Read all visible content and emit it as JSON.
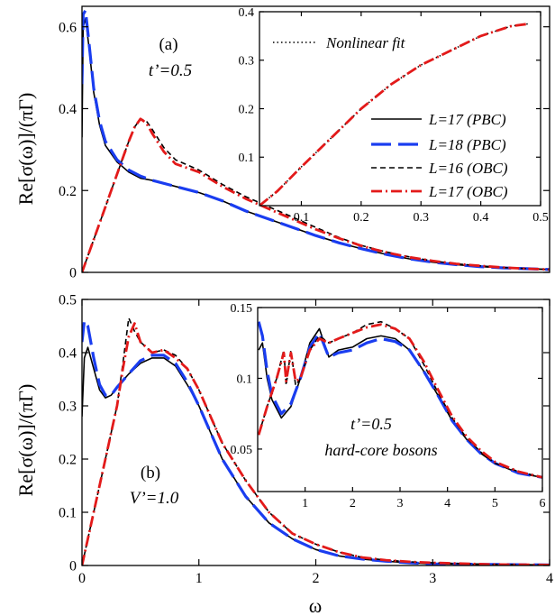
{
  "figure": {
    "x_axis_label": "ω",
    "legend": {
      "entries": [
        {
          "label": "L=17 (PBC)",
          "color": "#000000",
          "dash": "solid",
          "width": 1.6
        },
        {
          "label": "L=18 (PBC)",
          "color": "#1a3df0",
          "dash": "long-dash",
          "width": 3.2
        },
        {
          "label": "L=16 (OBC)",
          "color": "#000000",
          "dash": "dash",
          "width": 1.6
        },
        {
          "label": "L=17 (OBC)",
          "color": "#e31a1a",
          "dash": "dash-dot",
          "width": 2.8
        }
      ]
    },
    "inset_legend": {
      "label": "Nonlinear fit",
      "dash": "dotted"
    }
  },
  "chart_data": [
    {
      "id": "panel-a",
      "type": "line",
      "ylabel": "Re[σ(ω)]/(πΓ)",
      "xlabel": "",
      "xlim": [
        0,
        4
      ],
      "ylim": [
        0,
        0.65
      ],
      "xticks": [],
      "yticks": [
        0,
        0.2,
        0.4,
        0.6
      ],
      "ytick_labels": [
        "0",
        "0.2",
        "0.4",
        "0.6"
      ],
      "annotations": [
        "(a)",
        "t’=0.5"
      ],
      "series": [
        {
          "name": "L=17 (PBC)",
          "x": [
            0,
            0.01,
            0.03,
            0.06,
            0.1,
            0.15,
            0.2,
            0.3,
            0.4,
            0.5,
            0.6,
            0.8,
            1.0,
            1.2,
            1.4,
            1.6,
            1.8,
            2.0,
            2.2,
            2.4,
            2.6,
            2.8,
            3.0,
            3.2,
            3.4,
            3.6,
            3.8,
            4.0
          ],
          "y": [
            0.33,
            0.6,
            0.62,
            0.55,
            0.44,
            0.36,
            0.31,
            0.27,
            0.245,
            0.23,
            0.225,
            0.21,
            0.195,
            0.175,
            0.15,
            0.13,
            0.11,
            0.09,
            0.072,
            0.057,
            0.044,
            0.033,
            0.025,
            0.019,
            0.014,
            0.011,
            0.009,
            0.007
          ]
        },
        {
          "name": "L=18 (PBC)",
          "x": [
            0,
            0.01,
            0.03,
            0.06,
            0.1,
            0.15,
            0.2,
            0.3,
            0.4,
            0.5,
            0.6,
            0.8,
            1.0,
            1.2,
            1.4,
            1.6,
            1.8,
            2.0,
            2.2,
            2.4,
            2.6,
            2.8,
            3.0,
            3.2,
            3.4,
            3.6,
            3.8,
            4.0
          ],
          "y": [
            0.46,
            0.63,
            0.64,
            0.56,
            0.45,
            0.37,
            0.32,
            0.275,
            0.25,
            0.235,
            0.225,
            0.21,
            0.195,
            0.175,
            0.15,
            0.13,
            0.11,
            0.09,
            0.072,
            0.057,
            0.044,
            0.033,
            0.025,
            0.019,
            0.014,
            0.011,
            0.009,
            0.007
          ]
        },
        {
          "name": "L=16 (OBC)",
          "x": [
            0,
            0.1,
            0.2,
            0.3,
            0.4,
            0.45,
            0.5,
            0.55,
            0.6,
            0.7,
            0.8,
            1.0,
            1.2,
            1.4,
            1.6,
            1.8,
            2.0,
            2.2,
            2.4,
            2.6,
            2.8,
            3.0,
            3.2,
            3.4,
            3.6,
            3.8,
            4.0
          ],
          "y": [
            0,
            0.08,
            0.16,
            0.24,
            0.32,
            0.355,
            0.375,
            0.37,
            0.35,
            0.305,
            0.275,
            0.25,
            0.215,
            0.185,
            0.16,
            0.135,
            0.11,
            0.085,
            0.065,
            0.05,
            0.038,
            0.028,
            0.021,
            0.016,
            0.012,
            0.009,
            0.007
          ]
        },
        {
          "name": "L=17 (OBC)",
          "x": [
            0,
            0.1,
            0.2,
            0.3,
            0.4,
            0.45,
            0.5,
            0.55,
            0.6,
            0.7,
            0.8,
            1.0,
            1.2,
            1.4,
            1.6,
            1.8,
            2.0,
            2.2,
            2.4,
            2.6,
            2.8,
            3.0,
            3.2,
            3.4,
            3.6,
            3.8,
            4.0
          ],
          "y": [
            0,
            0.08,
            0.16,
            0.24,
            0.32,
            0.355,
            0.375,
            0.365,
            0.34,
            0.295,
            0.265,
            0.245,
            0.21,
            0.18,
            0.155,
            0.13,
            0.105,
            0.083,
            0.064,
            0.049,
            0.037,
            0.028,
            0.021,
            0.016,
            0.012,
            0.009,
            0.007
          ]
        }
      ]
    },
    {
      "id": "inset-a",
      "type": "line",
      "xlim": [
        0.03,
        0.5
      ],
      "ylim": [
        0,
        0.4
      ],
      "xticks": [
        0.1,
        0.2,
        0.3,
        0.4,
        0.5
      ],
      "xtick_labels": [
        "0.1",
        "0.2",
        "0.3",
        "0.4",
        "0.5"
      ],
      "yticks": [
        0.1,
        0.2,
        0.3,
        0.4
      ],
      "ytick_labels": [
        "0.1",
        "0.2",
        "0.3",
        "0.4"
      ],
      "series": [
        {
          "name": "Nonlinear fit",
          "x": [
            0.03,
            0.06,
            0.1,
            0.15,
            0.2,
            0.25,
            0.3,
            0.35,
            0.4,
            0.45,
            0.48
          ],
          "y": [
            0.0,
            0.03,
            0.08,
            0.14,
            0.2,
            0.25,
            0.29,
            0.32,
            0.35,
            0.37,
            0.375
          ]
        },
        {
          "name": "L=17 (OBC)",
          "x": [
            0.03,
            0.06,
            0.1,
            0.15,
            0.2,
            0.25,
            0.3,
            0.35,
            0.4,
            0.45,
            0.48
          ],
          "y": [
            0.0,
            0.03,
            0.08,
            0.14,
            0.2,
            0.25,
            0.29,
            0.32,
            0.35,
            0.37,
            0.375
          ]
        }
      ]
    },
    {
      "id": "panel-b",
      "type": "line",
      "ylabel": "Re[σ(ω)]/(πΓ)",
      "xlabel": "ω",
      "xlim": [
        0,
        4
      ],
      "ylim": [
        0,
        0.5
      ],
      "xticks": [
        0,
        1,
        2,
        3,
        4
      ],
      "xtick_labels": [
        "0",
        "1",
        "2",
        "3",
        "4"
      ],
      "yticks": [
        0,
        0.1,
        0.2,
        0.3,
        0.4,
        0.5
      ],
      "ytick_labels": [
        "0",
        "0.1",
        "0.2",
        "0.3",
        "0.4",
        "0.5"
      ],
      "annotations": [
        "(b)",
        "V’=1.0"
      ],
      "series": [
        {
          "name": "L=17 (PBC)",
          "x": [
            0,
            0.02,
            0.05,
            0.1,
            0.15,
            0.2,
            0.25,
            0.3,
            0.4,
            0.5,
            0.6,
            0.7,
            0.8,
            0.9,
            1.0,
            1.1,
            1.2,
            1.4,
            1.6,
            1.8,
            2.0,
            2.2,
            2.4,
            2.6,
            2.8,
            3.0,
            3.5,
            4.0
          ],
          "y": [
            0.28,
            0.39,
            0.41,
            0.37,
            0.33,
            0.315,
            0.32,
            0.335,
            0.36,
            0.38,
            0.39,
            0.39,
            0.375,
            0.34,
            0.3,
            0.25,
            0.2,
            0.13,
            0.08,
            0.05,
            0.03,
            0.018,
            0.012,
            0.008,
            0.005,
            0.003,
            0.002,
            0.001
          ]
        },
        {
          "name": "L=18 (PBC)",
          "x": [
            0,
            0.02,
            0.05,
            0.1,
            0.15,
            0.2,
            0.25,
            0.3,
            0.4,
            0.5,
            0.6,
            0.7,
            0.8,
            0.9,
            1.0,
            1.1,
            1.2,
            1.4,
            1.6,
            1.8,
            2.0,
            2.2,
            2.4,
            2.6,
            2.8,
            3.0,
            3.5,
            4.0
          ],
          "y": [
            0.42,
            0.46,
            0.45,
            0.39,
            0.34,
            0.32,
            0.32,
            0.335,
            0.36,
            0.385,
            0.395,
            0.395,
            0.38,
            0.345,
            0.3,
            0.25,
            0.2,
            0.13,
            0.08,
            0.05,
            0.03,
            0.018,
            0.012,
            0.008,
            0.005,
            0.003,
            0.002,
            0.001
          ]
        },
        {
          "name": "L=16 (OBC)",
          "x": [
            0,
            0.1,
            0.2,
            0.3,
            0.35,
            0.4,
            0.45,
            0.5,
            0.6,
            0.7,
            0.8,
            0.9,
            1.0,
            1.1,
            1.2,
            1.4,
            1.6,
            1.8,
            2.0,
            2.2,
            2.4,
            2.6,
            2.8,
            3.0,
            3.5,
            4.0
          ],
          "y": [
            0,
            0.1,
            0.2,
            0.3,
            0.38,
            0.465,
            0.44,
            0.42,
            0.4,
            0.405,
            0.395,
            0.37,
            0.33,
            0.28,
            0.23,
            0.16,
            0.1,
            0.06,
            0.04,
            0.025,
            0.015,
            0.01,
            0.007,
            0.005,
            0.002,
            0.001
          ]
        },
        {
          "name": "L=17 (OBC)",
          "x": [
            0,
            0.1,
            0.2,
            0.3,
            0.35,
            0.4,
            0.45,
            0.5,
            0.6,
            0.7,
            0.8,
            0.9,
            1.0,
            1.1,
            1.2,
            1.4,
            1.6,
            1.8,
            2.0,
            2.2,
            2.4,
            2.6,
            2.8,
            3.0,
            3.5,
            4.0
          ],
          "y": [
            0,
            0.1,
            0.2,
            0.3,
            0.37,
            0.43,
            0.455,
            0.42,
            0.4,
            0.405,
            0.39,
            0.37,
            0.33,
            0.28,
            0.23,
            0.16,
            0.1,
            0.06,
            0.04,
            0.025,
            0.015,
            0.01,
            0.007,
            0.005,
            0.002,
            0.001
          ]
        }
      ]
    },
    {
      "id": "inset-b",
      "type": "line",
      "xlim": [
        0,
        6
      ],
      "ylim": [
        0.02,
        0.15
      ],
      "xticks": [
        1,
        2,
        3,
        4,
        5,
        6
      ],
      "xtick_labels": [
        "1",
        "2",
        "3",
        "4",
        "5",
        "6"
      ],
      "yticks": [
        0.05,
        0.1,
        0.15
      ],
      "ytick_labels": [
        "0.05",
        "0.1",
        "0.15"
      ],
      "annotations": [
        "t’=0.5",
        "hard-core bosons"
      ],
      "series": [
        {
          "name": "L=17 (PBC)",
          "x": [
            0.02,
            0.1,
            0.2,
            0.3,
            0.5,
            0.7,
            0.9,
            1.1,
            1.3,
            1.5,
            1.7,
            2.0,
            2.3,
            2.6,
            2.9,
            3.2,
            3.5,
            3.8,
            4.1,
            4.4,
            4.7,
            5.0,
            5.5,
            6.0
          ],
          "y": [
            0.12,
            0.125,
            0.1,
            0.085,
            0.072,
            0.08,
            0.1,
            0.125,
            0.135,
            0.115,
            0.12,
            0.122,
            0.128,
            0.13,
            0.128,
            0.12,
            0.105,
            0.088,
            0.07,
            0.057,
            0.047,
            0.04,
            0.033,
            0.03
          ]
        },
        {
          "name": "L=18 (PBC)",
          "x": [
            0.02,
            0.1,
            0.2,
            0.3,
            0.5,
            0.7,
            0.9,
            1.1,
            1.3,
            1.5,
            1.7,
            2.0,
            2.3,
            2.6,
            2.9,
            3.2,
            3.5,
            3.8,
            4.1,
            4.4,
            4.7,
            5.0,
            5.5,
            6.0
          ],
          "y": [
            0.14,
            0.13,
            0.105,
            0.088,
            0.075,
            0.082,
            0.1,
            0.122,
            0.132,
            0.115,
            0.118,
            0.12,
            0.125,
            0.128,
            0.126,
            0.12,
            0.105,
            0.088,
            0.07,
            0.057,
            0.047,
            0.04,
            0.033,
            0.03
          ]
        },
        {
          "name": "L=16 (OBC)",
          "x": [
            0.02,
            0.2,
            0.4,
            0.55,
            0.6,
            0.7,
            0.8,
            0.9,
            1.1,
            1.3,
            1.5,
            1.7,
            2.0,
            2.3,
            2.6,
            2.9,
            3.2,
            3.5,
            3.8,
            4.1,
            4.4,
            4.7,
            5.0,
            5.5,
            6.0
          ],
          "y": [
            0.06,
            0.08,
            0.1,
            0.12,
            0.095,
            0.12,
            0.095,
            0.1,
            0.12,
            0.13,
            0.125,
            0.128,
            0.132,
            0.138,
            0.14,
            0.135,
            0.128,
            0.11,
            0.09,
            0.072,
            0.058,
            0.048,
            0.04,
            0.034,
            0.03
          ]
        },
        {
          "name": "L=17 (OBC)",
          "x": [
            0.02,
            0.2,
            0.4,
            0.55,
            0.6,
            0.7,
            0.8,
            0.9,
            1.1,
            1.3,
            1.5,
            1.7,
            2.0,
            2.3,
            2.6,
            2.9,
            3.2,
            3.5,
            3.8,
            4.1,
            4.4,
            4.7,
            5.0,
            5.5,
            6.0
          ],
          "y": [
            0.06,
            0.08,
            0.1,
            0.118,
            0.098,
            0.118,
            0.098,
            0.1,
            0.12,
            0.128,
            0.125,
            0.128,
            0.132,
            0.136,
            0.138,
            0.135,
            0.128,
            0.112,
            0.092,
            0.073,
            0.059,
            0.049,
            0.041,
            0.034,
            0.03
          ]
        }
      ]
    }
  ]
}
